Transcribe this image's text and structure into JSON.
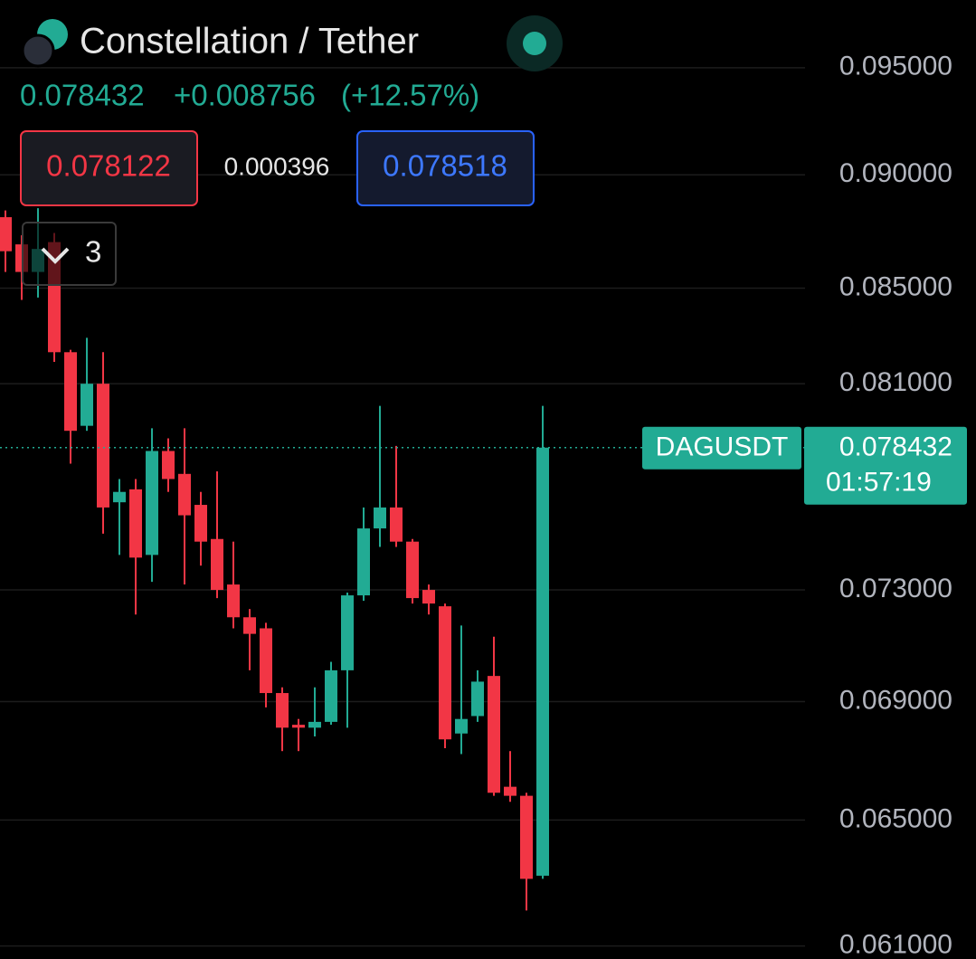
{
  "chart_data": {
    "type": "candlestick",
    "title": "Constellation / Tether",
    "symbol": "DAGUSDT",
    "change": "+0.008756",
    "change_percent": "(+12.57%)",
    "bid": 0.078122,
    "spread": 0.000396,
    "ask": 0.078518,
    "indicator_count": 3,
    "countdown": "01:57:19",
    "up_color": "#22ab94",
    "down_color": "#f23645",
    "log_scale": true,
    "grid": true,
    "ylim": [
      0.0606,
      0.0983
    ],
    "yticks": [
      {
        "value": 0.095,
        "label": "0.095000"
      },
      {
        "value": 0.09,
        "label": "0.090000"
      },
      {
        "value": 0.085,
        "label": "0.085000"
      },
      {
        "value": 0.081,
        "label": "0.081000"
      },
      {
        "value": 0.073,
        "label": "0.073000"
      },
      {
        "value": 0.069,
        "label": "0.069000"
      },
      {
        "value": 0.065,
        "label": "0.065000"
      },
      {
        "value": 0.061,
        "label": "0.061000"
      }
    ],
    "open": [
      0.0881,
      0.0869,
      0.0857,
      0.087,
      0.0823,
      0.0793,
      0.081,
      0.0763,
      0.0768,
      0.0743,
      0.0783,
      0.0774,
      0.0762,
      0.0749,
      0.0732,
      0.072,
      0.0716,
      0.0693,
      0.0682,
      0.0681,
      0.0683,
      0.0701,
      0.0728,
      0.0753,
      0.0761,
      0.0748,
      0.073,
      0.0724,
      0.0679,
      0.0685,
      0.0699,
      0.0661,
      0.0658,
      0.0632
    ],
    "high": [
      0.0884,
      0.0873,
      0.0885,
      0.0874,
      0.0824,
      0.0829,
      0.0823,
      0.0772,
      0.0772,
      0.0792,
      0.0788,
      0.0792,
      0.0767,
      0.0775,
      0.0748,
      0.0723,
      0.0718,
      0.0695,
      0.0684,
      0.0695,
      0.0704,
      0.0729,
      0.0761,
      0.0801,
      0.0785,
      0.0749,
      0.0732,
      0.0725,
      0.0717,
      0.0701,
      0.0713,
      0.0673,
      0.0659,
      0.0801
    ],
    "low": [
      0.0857,
      0.0845,
      0.0846,
      0.0819,
      0.0778,
      0.0791,
      0.0751,
      0.0743,
      0.0721,
      0.0733,
      0.0767,
      0.0732,
      0.0739,
      0.0727,
      0.0716,
      0.0701,
      0.0688,
      0.0673,
      0.0673,
      0.0678,
      0.0682,
      0.0681,
      0.0726,
      0.0746,
      0.0746,
      0.0725,
      0.0721,
      0.0674,
      0.0672,
      0.0683,
      0.0658,
      0.0656,
      0.0621,
      0.0631
    ],
    "close": [
      0.0866,
      0.0857,
      0.0867,
      0.0823,
      0.0791,
      0.081,
      0.0761,
      0.0767,
      0.0742,
      0.0783,
      0.0772,
      0.0758,
      0.0748,
      0.073,
      0.072,
      0.0714,
      0.0693,
      0.0681,
      0.0681,
      0.0683,
      0.0701,
      0.0728,
      0.0753,
      0.0761,
      0.0748,
      0.0727,
      0.0725,
      0.0677,
      0.0684,
      0.0697,
      0.0659,
      0.0658,
      0.0631,
      0.078432
    ]
  }
}
